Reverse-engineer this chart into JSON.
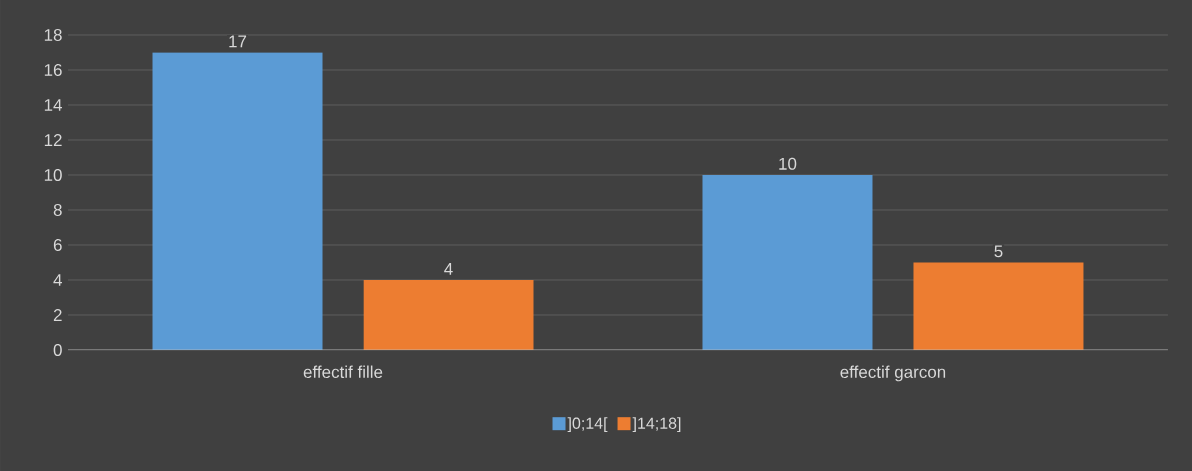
{
  "chart_data": {
    "type": "bar",
    "categories": [
      "effectif fille",
      "effectif garcon"
    ],
    "series": [
      {
        "name": "]0;14[",
        "color": "#5b9bd5",
        "values": [
          17,
          10
        ]
      },
      {
        "name": "]14;18]",
        "color": "#ed7d31",
        "values": [
          4,
          5
        ]
      }
    ],
    "ylim": [
      0,
      18
    ],
    "yticks": [
      0,
      2,
      4,
      6,
      8,
      10,
      12,
      14,
      16,
      18
    ],
    "grid": "y",
    "legend": "bottom",
    "data_labels": true
  }
}
